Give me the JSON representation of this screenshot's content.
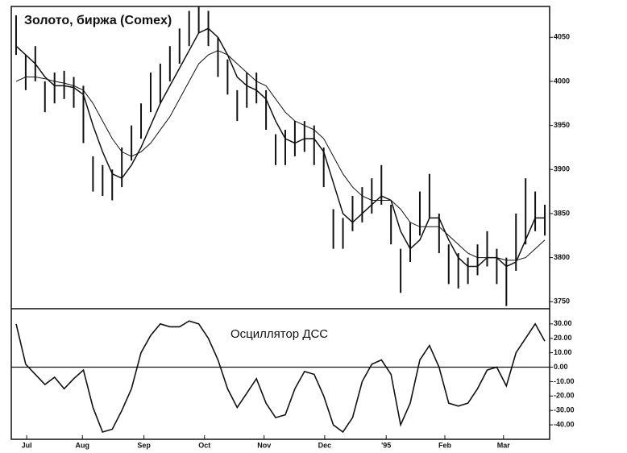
{
  "chart_data": [
    {
      "type": "hilo",
      "title": "Золото, биржа (Comex)",
      "x": [
        0,
        1,
        2,
        3,
        4,
        5,
        6,
        7,
        8,
        9,
        10,
        11,
        12,
        13,
        14,
        15,
        16,
        17,
        18,
        19,
        20,
        21,
        22,
        23,
        24,
        25,
        26,
        27,
        28,
        29,
        30,
        31,
        32,
        33,
        34,
        35,
        36,
        37,
        38,
        39,
        40,
        41,
        42,
        43,
        44,
        45,
        46,
        47,
        48,
        49,
        50,
        51,
        52,
        53,
        54,
        55
      ],
      "high": [
        4075,
        4030,
        4040,
        4000,
        4010,
        4012,
        4005,
        3995,
        3915,
        3905,
        3900,
        3925,
        3950,
        3975,
        4010,
        4020,
        4040,
        4060,
        4080,
        4085,
        4080,
        4050,
        4025,
        3990,
        4010,
        4010,
        3990,
        3940,
        3945,
        3955,
        3955,
        3950,
        3925,
        3855,
        3845,
        3870,
        3880,
        3890,
        3905,
        3860,
        3810,
        3840,
        3875,
        3895,
        3850,
        3815,
        3805,
        3800,
        3815,
        3830,
        3810,
        3800,
        3850,
        3890,
        3875,
        3860
      ],
      "low": [
        4030,
        3990,
        4000,
        3965,
        3975,
        3980,
        3970,
        3930,
        3875,
        3870,
        3865,
        3880,
        3910,
        3935,
        3965,
        3975,
        4000,
        4020,
        4040,
        4055,
        4040,
        4005,
        3985,
        3955,
        3970,
        3975,
        3945,
        3905,
        3905,
        3915,
        3920,
        3905,
        3880,
        3810,
        3810,
        3830,
        3840,
        3850,
        3860,
        3815,
        3760,
        3795,
        3825,
        3845,
        3805,
        3770,
        3765,
        3770,
        3780,
        3790,
        3770,
        3745,
        3785,
        3815,
        3830,
        3825
      ],
      "series": [
        {
          "color": "#111111",
          "values": [
            4040,
            4030,
            4020,
            4005,
            3995,
            3995,
            3993,
            3985,
            3950,
            3920,
            3895,
            3890,
            3905,
            3925,
            3950,
            3975,
            3995,
            4015,
            4035,
            4055,
            4060,
            4050,
            4030,
            4005,
            3995,
            3990,
            3980,
            3955,
            3935,
            3930,
            3935,
            3935,
            3920,
            3885,
            3850,
            3840,
            3850,
            3860,
            3870,
            3865,
            3830,
            3810,
            3820,
            3845,
            3845,
            3820,
            3800,
            3790,
            3790,
            3800,
            3800,
            3790,
            3795,
            3820,
            3845,
            3845
          ]
        },
        {
          "color": "#111111",
          "values": [
            4000,
            4005,
            4005,
            4003,
            4000,
            3998,
            3995,
            3990,
            3975,
            3955,
            3935,
            3920,
            3915,
            3920,
            3930,
            3945,
            3960,
            3980,
            4000,
            4020,
            4030,
            4035,
            4030,
            4020,
            4010,
            4000,
            3995,
            3980,
            3965,
            3955,
            3950,
            3945,
            3935,
            3915,
            3895,
            3880,
            3870,
            3865,
            3865,
            3865,
            3855,
            3840,
            3835,
            3835,
            3835,
            3825,
            3815,
            3805,
            3800,
            3800,
            3800,
            3797,
            3797,
            3800,
            3810,
            3820
          ]
        }
      ],
      "xlim": [
        -0.5,
        55.5
      ],
      "ylim": [
        3742,
        4085
      ],
      "yticks": [
        3750,
        3800,
        3850,
        3900,
        3950,
        4000,
        4050
      ]
    },
    {
      "type": "line",
      "annotation": "Осциллятор ДСС",
      "x": [
        0,
        1,
        2,
        3,
        4,
        5,
        6,
        7,
        8,
        9,
        10,
        11,
        12,
        13,
        14,
        15,
        16,
        17,
        18,
        19,
        20,
        21,
        22,
        23,
        24,
        25,
        26,
        27,
        28,
        29,
        30,
        31,
        32,
        33,
        34,
        35,
        36,
        37,
        38,
        39,
        40,
        41,
        42,
        43,
        44,
        45,
        46,
        47,
        48,
        49,
        50,
        51,
        52,
        53,
        54,
        55
      ],
      "series": [
        {
          "color": "#111111",
          "values": [
            30,
            2,
            -5,
            -12,
            -7,
            -15,
            -8,
            -2,
            -28,
            -45,
            -43,
            -30,
            -15,
            10,
            22,
            30,
            28,
            28,
            32,
            30,
            20,
            5,
            -15,
            -28,
            -18,
            -8,
            -25,
            -35,
            -33,
            -15,
            -3,
            -5,
            -20,
            -40,
            -45,
            -35,
            -10,
            2,
            5,
            -5,
            -40,
            -25,
            5,
            15,
            0,
            -25,
            -27,
            -25,
            -15,
            -2,
            0,
            -13,
            10,
            20,
            30,
            18
          ]
        }
      ],
      "xlim": [
        -0.5,
        55.5
      ],
      "ylim": [
        -50,
        40.5
      ],
      "yticks": [
        {
          "value": 30,
          "label": "30.00"
        },
        {
          "value": 20,
          "label": "20.00"
        },
        {
          "value": 10,
          "label": "10.00"
        },
        {
          "value": 0,
          "label": "0.00"
        },
        {
          "value": -10,
          "label": "-10.00"
        },
        {
          "value": -20,
          "label": "-20.00"
        },
        {
          "value": -30,
          "label": "-30.00"
        },
        {
          "value": -40,
          "label": "-40.00"
        }
      ],
      "xticks": [
        {
          "value": 1.1,
          "label": "Jul"
        },
        {
          "value": 6.9,
          "label": "Aug"
        },
        {
          "value": 13.3,
          "label": "Sep"
        },
        {
          "value": 19.6,
          "label": "Oct"
        },
        {
          "value": 25.8,
          "label": "Nov"
        },
        {
          "value": 32.1,
          "label": "Dec"
        },
        {
          "value": 38.5,
          "label": "'95"
        },
        {
          "value": 44.6,
          "label": "Feb"
        },
        {
          "value": 50.7,
          "label": "Mar"
        }
      ]
    }
  ]
}
